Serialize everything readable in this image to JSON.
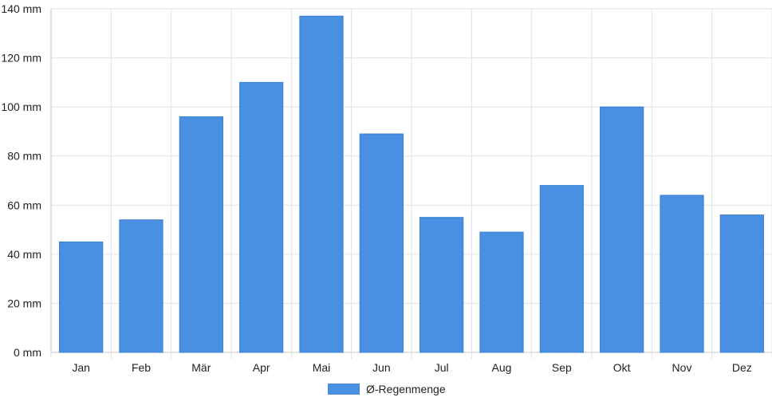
{
  "chart_data": {
    "type": "bar",
    "categories": [
      "Jan",
      "Feb",
      "Mär",
      "Apr",
      "Mai",
      "Jun",
      "Jul",
      "Aug",
      "Sep",
      "Okt",
      "Nov",
      "Dez"
    ],
    "series": [
      {
        "name": "Ø-Regenmenge",
        "values": [
          45,
          54,
          96,
          110,
          137,
          89,
          55,
          49,
          68,
          100,
          64,
          56
        ],
        "color": "#4a90e2"
      }
    ],
    "yticks": [
      "0 mm",
      "20 mm",
      "40 mm",
      "60 mm",
      "80 mm",
      "100 mm",
      "120 mm",
      "140 mm"
    ],
    "ylim": [
      0,
      140
    ],
    "grid": true,
    "legend_position": "bottom"
  }
}
